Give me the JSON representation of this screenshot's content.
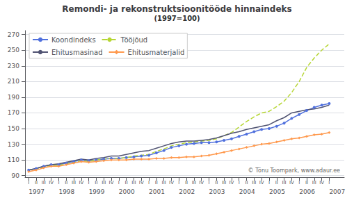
{
  "chart_data": {
    "type": "line",
    "title": "Remondi- ja rekonstruktsioonitööde hinnaindeks",
    "subtitle": "(1997=100)",
    "x": [
      1997,
      1997.25,
      1997.5,
      1997.75,
      1998,
      1998.25,
      1998.5,
      1998.75,
      1999,
      1999.25,
      1999.5,
      1999.75,
      2000,
      2000.25,
      2000.5,
      2000.75,
      2001,
      2001.25,
      2001.5,
      2001.75,
      2002,
      2002.25,
      2002.5,
      2002.75,
      2003,
      2003.25,
      2003.5,
      2003.75,
      2004,
      2004.25,
      2004.5,
      2004.75,
      2005,
      2005.25,
      2005.5,
      2005.75,
      2006,
      2006.25,
      2006.5,
      2006.75,
      2007
    ],
    "series": [
      {
        "name": "Koondindeks",
        "marker": "circle",
        "values": [
          97,
          99,
          102,
          104,
          104,
          106,
          108,
          110,
          109,
          110,
          111,
          112,
          112,
          113,
          114,
          115,
          116,
          119,
          122,
          126,
          128,
          130,
          131,
          132,
          132,
          133,
          135,
          137,
          140,
          143,
          146,
          149,
          150,
          153,
          157,
          163,
          168,
          173,
          177,
          180,
          182
        ]
      },
      {
        "name": "Tööjõud",
        "line_style": "dashed",
        "values": [
          97,
          99,
          101,
          103,
          103,
          105,
          107,
          109,
          108,
          110,
          111,
          112,
          112,
          113,
          115,
          116,
          117,
          121,
          124,
          128,
          130,
          132,
          133,
          134,
          135,
          137,
          141,
          145,
          152,
          159,
          165,
          170,
          172,
          178,
          185,
          196,
          210,
          228,
          240,
          250,
          258
        ]
      },
      {
        "name": "Ehitusmasinad",
        "values": [
          97,
          99,
          102,
          104,
          105,
          107,
          109,
          111,
          110,
          112,
          113,
          115,
          115,
          117,
          119,
          121,
          122,
          125,
          128,
          131,
          133,
          134,
          134,
          135,
          136,
          138,
          141,
          144,
          146,
          149,
          151,
          153,
          155,
          160,
          164,
          170,
          172,
          174,
          175,
          177,
          180
        ]
      },
      {
        "name": "Ehitusmaterjalid",
        "marker": "diamond",
        "values": [
          95,
          97,
          100,
          102,
          102,
          104,
          106,
          108,
          107,
          108,
          109,
          110,
          110,
          110,
          111,
          111,
          111,
          112,
          112,
          113,
          113,
          114,
          114,
          115,
          116,
          118,
          120,
          122,
          124,
          126,
          128,
          130,
          131,
          133,
          135,
          137,
          138,
          140,
          142,
          143,
          145
        ]
      }
    ],
    "xlim": [
      1996.88,
      2007.5
    ],
    "xticks": [
      {
        "value": 1997,
        "label": "I"
      },
      {
        "value": 1997.25,
        "label": "II"
      },
      {
        "value": 1997.5,
        "label": "III"
      },
      {
        "value": 1997.75,
        "label": "IV"
      },
      {
        "value": 1998,
        "label": "I"
      },
      {
        "value": 1998.25,
        "label": "II"
      },
      {
        "value": 1998.5,
        "label": "III"
      },
      {
        "value": 1998.75,
        "label": "IV"
      },
      {
        "value": 1999,
        "label": "I"
      },
      {
        "value": 1999.25,
        "label": "II"
      },
      {
        "value": 1999.5,
        "label": "III"
      },
      {
        "value": 1999.75,
        "label": "IV"
      },
      {
        "value": 2000,
        "label": "I"
      },
      {
        "value": 2000.25,
        "label": "II"
      },
      {
        "value": 2000.5,
        "label": "III"
      },
      {
        "value": 2000.75,
        "label": "IV"
      },
      {
        "value": 2001,
        "label": "I"
      },
      {
        "value": 2001.25,
        "label": "II"
      },
      {
        "value": 2001.5,
        "label": "III"
      },
      {
        "value": 2001.75,
        "label": "IV"
      },
      {
        "value": 2002,
        "label": "I"
      },
      {
        "value": 2002.25,
        "label": "II"
      },
      {
        "value": 2002.5,
        "label": "III"
      },
      {
        "value": 2002.75,
        "label": "IV"
      },
      {
        "value": 2003,
        "label": "I"
      },
      {
        "value": 2003.25,
        "label": "II"
      },
      {
        "value": 2003.5,
        "label": "III"
      },
      {
        "value": 2003.75,
        "label": "IV"
      },
      {
        "value": 2004,
        "label": "I"
      },
      {
        "value": 2004.25,
        "label": "II"
      },
      {
        "value": 2004.5,
        "label": "III"
      },
      {
        "value": 2004.75,
        "label": "IV"
      },
      {
        "value": 2005,
        "label": "I"
      },
      {
        "value": 2005.25,
        "label": "II"
      },
      {
        "value": 2005.5,
        "label": "III"
      },
      {
        "value": 2005.75,
        "label": "IV"
      },
      {
        "value": 2006,
        "label": "I"
      },
      {
        "value": 2006.25,
        "label": "II"
      },
      {
        "value": 2006.5,
        "label": "III"
      },
      {
        "value": 2006.75,
        "label": "IV"
      },
      {
        "value": 2007,
        "label": "I"
      }
    ],
    "ylim": [
      88,
      275
    ],
    "yticks": [
      90,
      110,
      130,
      150,
      170,
      190,
      210,
      230,
      250,
      270
    ],
    "grid": true,
    "legend": "upper left",
    "annotations": [
      {
        "text": "1997",
        "x": 1997
      },
      {
        "text": "1998",
        "x": 1998
      },
      {
        "text": "1999",
        "x": 1999
      },
      {
        "text": "2000",
        "x": 2000
      },
      {
        "text": "2001",
        "x": 2001
      },
      {
        "text": "2002",
        "x": 2002
      },
      {
        "text": "2003",
        "x": 2003
      },
      {
        "text": "2004",
        "x": 2004
      },
      {
        "text": "2005",
        "x": 2005
      },
      {
        "text": "2006",
        "x": 2006
      },
      {
        "text": "2007",
        "x": 2007
      },
      {
        "text": "© Tõnu Toompark, www.adaur.ee"
      }
    ]
  }
}
